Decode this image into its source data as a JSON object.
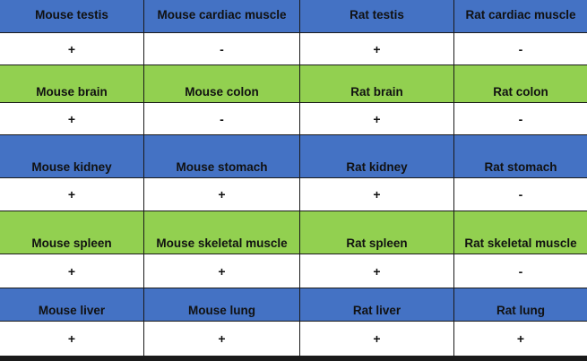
{
  "colors": {
    "blue": "#4472c4",
    "green": "#92d050",
    "white": "#ffffff"
  },
  "rows": [
    {
      "type": "header",
      "color": "blue",
      "cells": [
        "Mouse testis",
        "Mouse cardiac muscle",
        "Rat testis",
        "Rat cardiac muscle"
      ]
    },
    {
      "type": "value",
      "cells": [
        "+",
        "-",
        "+",
        "-"
      ]
    },
    {
      "type": "header",
      "color": "green",
      "cells": [
        "Mouse brain",
        "Mouse colon",
        "Rat brain",
        "Rat colon"
      ]
    },
    {
      "type": "value",
      "cells": [
        "+",
        "-",
        "+",
        "-"
      ]
    },
    {
      "type": "header",
      "color": "blue",
      "cells": [
        "Mouse kidney",
        "Mouse stomach",
        "Rat kidney",
        "Rat stomach"
      ]
    },
    {
      "type": "value",
      "cells": [
        "+",
        "+",
        "+",
        "-"
      ]
    },
    {
      "type": "header",
      "color": "green",
      "cells": [
        "Mouse spleen",
        "Mouse skeletal muscle",
        "Rat spleen",
        "Rat skeletal muscle"
      ]
    },
    {
      "type": "value",
      "cells": [
        "+",
        "+",
        "+",
        "-"
      ]
    },
    {
      "type": "header",
      "color": "blue",
      "cells": [
        "Mouse liver",
        "Mouse lung",
        "Rat liver",
        "Rat lung"
      ]
    },
    {
      "type": "value",
      "cells": [
        "+",
        "+",
        "+",
        "+"
      ]
    }
  ]
}
